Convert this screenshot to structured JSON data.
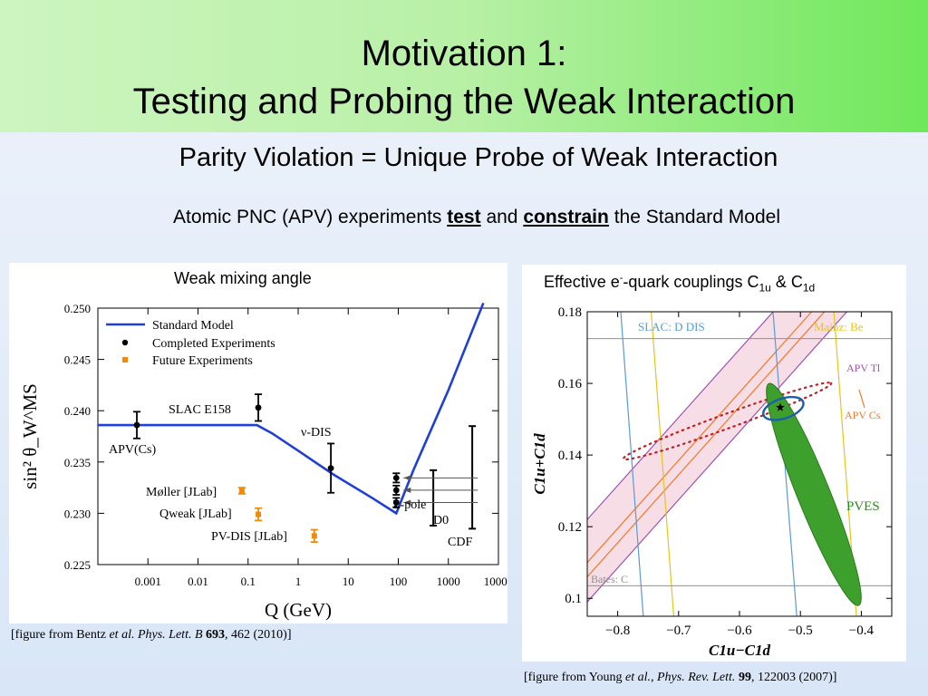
{
  "slide": {
    "title_line1": "Motivation 1:",
    "title_line2": "Testing and Probing the Weak Interaction",
    "subtitle": "Parity Violation = Unique Probe of Weak Interaction",
    "statement_pre": "Atomic PNC (APV) experiments ",
    "statement_test": "test",
    "statement_mid": " and ",
    "statement_constrain": "constrain",
    "statement_post": " the Standard Model"
  },
  "left_panel": {
    "title": "Weak mixing angle",
    "citation_pre": "[figure from Bentz ",
    "citation_etal": "et al. Phys. Lett. B",
    "citation_vol": "693",
    "citation_post": ", 462 (2010)]"
  },
  "right_panel": {
    "title_a": "Effective e",
    "title_sup": "-",
    "title_b": "-quark couplings C",
    "title_sub1": "1u",
    "title_c": " & C",
    "title_sub2": "1d",
    "citation_pre": "[figure from Young ",
    "citation_etal": "et al., Phys. Rev. Lett.",
    "citation_vol": "99",
    "citation_post": ", 122003 (2007)]"
  },
  "chart_data": [
    {
      "type": "scatter",
      "xlabel": "Q (GeV)",
      "ylabel": "sin² θ_W^MS",
      "xscale": "log",
      "xlim": [
        0.0001,
        10000
      ],
      "ylim": [
        0.225,
        0.25
      ],
      "yticks": [
        "0.225",
        "0.230",
        "0.235",
        "0.240",
        "0.245",
        "0.250"
      ],
      "xticks": [
        "0.001",
        "0.01",
        "0.1",
        "1",
        "10",
        "100",
        "1000",
        "10000"
      ],
      "legend": [
        "Standard Model",
        "Completed Experiments",
        "Future Experiments"
      ],
      "legend_position": "top-left",
      "colors": {
        "sm": "#1f3fd6",
        "completed": "#000000",
        "future": "#f08a0c"
      },
      "standard_model": [
        [
          0.0001,
          0.2386
        ],
        [
          0.15,
          0.2386
        ],
        [
          0.3,
          0.2378
        ],
        [
          1.0,
          0.2361
        ],
        [
          5.0,
          0.2338
        ],
        [
          30,
          0.2315
        ],
        [
          91.2,
          0.23
        ],
        [
          200,
          0.2342
        ],
        [
          1000,
          0.242
        ],
        [
          5000,
          0.2505
        ]
      ],
      "completed": [
        {
          "label": "APV(Cs)",
          "q": 0.0006,
          "value": 0.2386,
          "err": 0.0013
        },
        {
          "label": "SLAC E158",
          "q": 0.16,
          "value": 0.2403,
          "err": 0.0013
        },
        {
          "label": "ν-DIS",
          "q": 4.5,
          "value": 0.2344,
          "err": 0.0024
        },
        {
          "label": "Z-pole",
          "q": 91.2,
          "value": 0.23345,
          "err": 0.00045
        },
        {
          "label": "Z-pole",
          "q": 91.2,
          "value": 0.23225,
          "err": 0.00045
        },
        {
          "label": "Z-pole",
          "q": 91.2,
          "value": 0.23105,
          "err": 0.00045
        },
        {
          "label": "D0",
          "q": 500,
          "value": 0.2315,
          "err": 0.0027
        },
        {
          "label": "CDF",
          "q": 3000,
          "value": 0.2335,
          "err": 0.005
        }
      ],
      "future": [
        {
          "label": "Møller [JLab]",
          "q": 0.075,
          "value": 0.2322,
          "err": 0.0003
        },
        {
          "label": "Qweak [JLab]",
          "q": 0.16,
          "value": 0.2299,
          "err": 0.0006
        },
        {
          "label": "PV-DIS [JLab]",
          "q": 2.1,
          "value": 0.2278,
          "err": 0.0006
        }
      ]
    },
    {
      "type": "scatter",
      "xlabel": "C1u−C1d",
      "ylabel": "C1u+C1d",
      "xlim": [
        -0.85,
        -0.35
      ],
      "ylim": [
        0.095,
        0.18
      ],
      "xticks": [
        "−0.8",
        "−0.7",
        "−0.6",
        "−0.5",
        "−0.4"
      ],
      "yticks": [
        "0.1",
        "0.12",
        "0.14",
        "0.16",
        "0.18"
      ],
      "band_labels": [
        "SLAC: D DIS",
        "Mainz: Be",
        "APV Tl",
        "APV Cs",
        "PVES",
        "Bates: C"
      ],
      "colors": {
        "slac": "#5a9bd5",
        "mainz": "#e8c51b",
        "apvtl": "#a050b0",
        "apvcs": "#f07828",
        "pves": "#3ea02c",
        "bates": "#909090",
        "ellipse": "#1f5ea8",
        "dots": "#c02020"
      },
      "star_point": [
        -0.5331,
        0.1533
      ]
    }
  ]
}
